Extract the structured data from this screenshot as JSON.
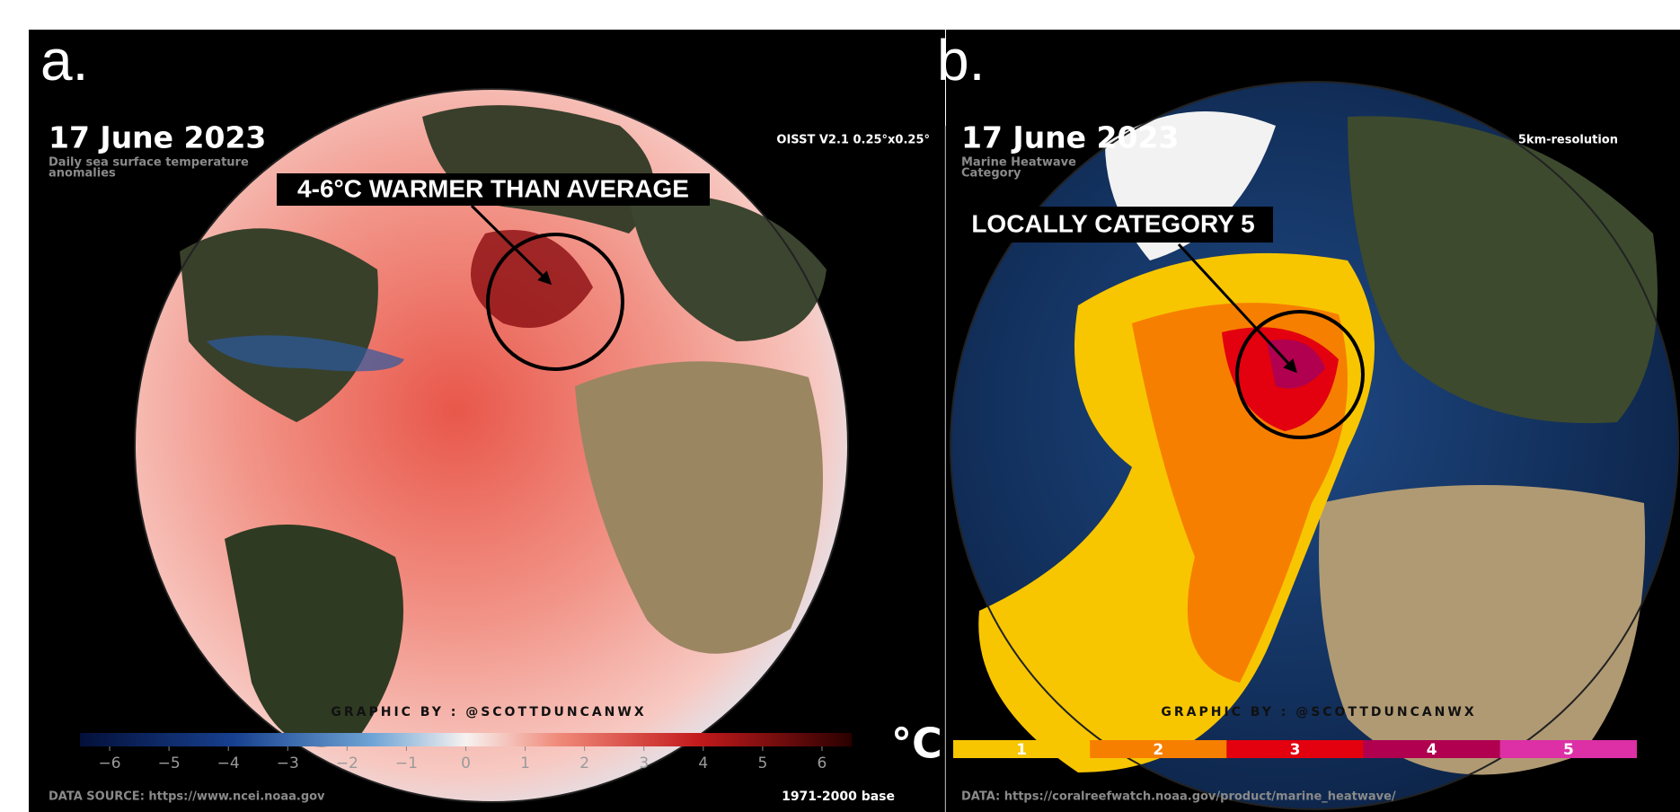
{
  "panels": [
    {
      "label": "a.",
      "date": "17 June 2023",
      "subtitle_lines": [
        "Daily sea surface temperature",
        "anomalies"
      ],
      "dataset": "OISST V2.1 0.25°x0.25°",
      "annotation": "4-6°C WARMER THAN AVERAGE",
      "credit": "GRAPHIC BY : @SCOTTDUNCANWX",
      "colorbar": {
        "range": [
          -6.5,
          6.5
        ],
        "unit": "°C",
        "ticks": [
          {
            "value": -6,
            "label": "−6"
          },
          {
            "value": -5,
            "label": "−5"
          },
          {
            "value": -4,
            "label": "−4"
          },
          {
            "value": -3,
            "label": "−3"
          },
          {
            "value": -2,
            "label": "−2"
          },
          {
            "value": -1,
            "label": "−1"
          },
          0,
          1,
          2,
          3,
          4,
          5,
          6
        ]
      },
      "source": "DATA SOURCE: https://www.ncei.noaa.gov",
      "baseline": "1971-2000 base"
    },
    {
      "label": "b.",
      "date": "17 June 2023",
      "subtitle_lines": [
        "Marine Heatwave",
        "Category"
      ],
      "dataset": "5km-resolution",
      "annotation": "LOCALLY CATEGORY 5",
      "credit": "GRAPHIC BY : @SCOTTDUNCANWX",
      "legend": {
        "categories": [
          1,
          2,
          3,
          4,
          5
        ],
        "colors": [
          "#f7c600",
          "#f77f00",
          "#e3000f",
          "#b0004f",
          "#dd2fa6"
        ]
      },
      "source": "DATA: https://coralreefwatch.noaa.gov/product/marine_heatwave/"
    }
  ]
}
